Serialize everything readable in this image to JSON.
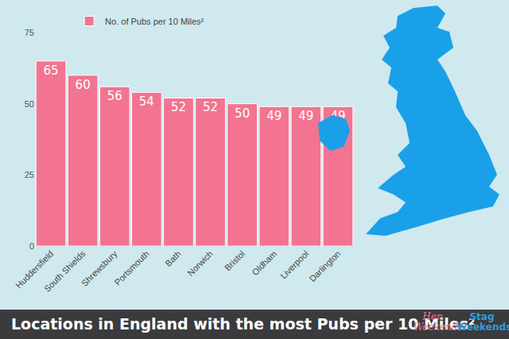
{
  "chart_data": {
    "type": "bar",
    "title": "Locations in England with the most Pubs per 10 Miles²",
    "categories": [
      "Huddersfield",
      "South Shields",
      "Shrewsbury",
      "Portsmouth",
      "Bath",
      "Norwich",
      "Bristol",
      "Oldham",
      "Liverpool",
      "Darlington"
    ],
    "series": [
      {
        "name": "No. of Pubs per 10 Miles²",
        "color": "#f27490",
        "values": [
          65,
          60,
          56,
          54,
          52,
          52,
          50,
          49,
          49,
          49
        ]
      }
    ],
    "ylim": [
      0,
      75
    ],
    "yticks": [
      0,
      25,
      50,
      75
    ],
    "grid": false,
    "data_labels": true,
    "legend": "top",
    "annotations": [
      "Hen Weekends",
      "Stag Weekends"
    ]
  }
}
